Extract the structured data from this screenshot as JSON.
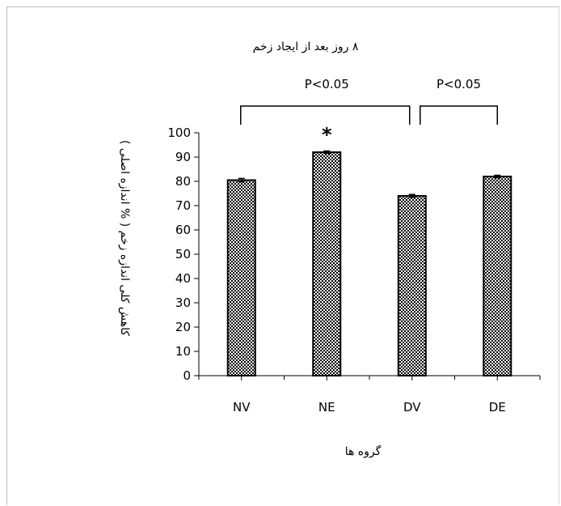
{
  "chart_data": {
    "type": "bar",
    "title": "۸ روز بعد از ایجاد زخم",
    "xlabel": "گروه ها",
    "ylabel": "کاهش کلی اندازه زخم ( % اندازه اصلی )",
    "categories": [
      "NV",
      "NE",
      "DV",
      "DE"
    ],
    "values": [
      80.5,
      92,
      74,
      82
    ],
    "errors": [
      0.7,
      0.5,
      0.6,
      0.5
    ],
    "ylim": [
      0,
      100
    ],
    "yticks": [
      "0",
      "10",
      "20",
      "30",
      "40",
      "50",
      "60",
      "70",
      "80",
      "90",
      "100"
    ],
    "grid": false,
    "bar_pattern": "checkerboard",
    "annotations": {
      "significance_marker": "*",
      "bracket_labels": [
        "P<0.05",
        "P<0.05"
      ]
    }
  }
}
